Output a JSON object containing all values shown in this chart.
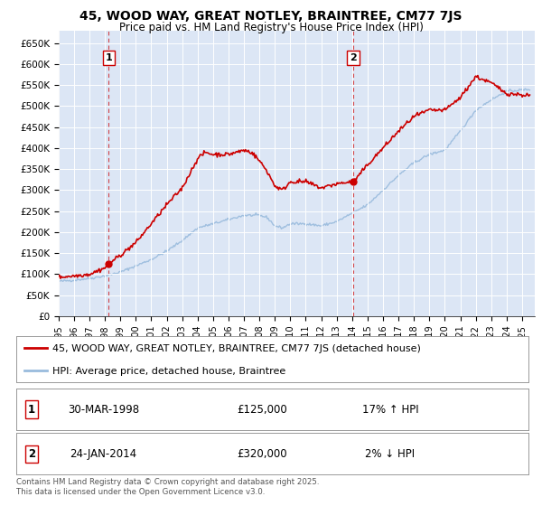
{
  "title": "45, WOOD WAY, GREAT NOTLEY, BRAINTREE, CM77 7JS",
  "subtitle": "Price paid vs. HM Land Registry's House Price Index (HPI)",
  "ylim": [
    0,
    680000
  ],
  "background_color": "#dce6f5",
  "sale1_date": 1998.25,
  "sale1_price": 125000,
  "sale1_label": "1",
  "sale2_date": 2014.07,
  "sale2_price": 320000,
  "sale2_label": "2",
  "legend_line1": "45, WOOD WAY, GREAT NOTLEY, BRAINTREE, CM77 7JS (detached house)",
  "legend_line2": "HPI: Average price, detached house, Braintree",
  "table_row1_num": "1",
  "table_row1_date": "30-MAR-1998",
  "table_row1_price": "£125,000",
  "table_row1_hpi": "17% ↑ HPI",
  "table_row2_num": "2",
  "table_row2_date": "24-JAN-2014",
  "table_row2_price": "£320,000",
  "table_row2_hpi": "2% ↓ HPI",
  "footer": "Contains HM Land Registry data © Crown copyright and database right 2025.\nThis data is licensed under the Open Government Licence v3.0.",
  "line_color_red": "#cc0000",
  "line_color_blue": "#99bbdd",
  "vline_color": "#cc0000",
  "yticks": [
    0,
    50000,
    100000,
    150000,
    200000,
    250000,
    300000,
    350000,
    400000,
    450000,
    500000,
    550000,
    600000,
    650000
  ],
  "ylabels": [
    "£0",
    "£50K",
    "£100K",
    "£150K",
    "£200K",
    "£250K",
    "£300K",
    "£350K",
    "£400K",
    "£450K",
    "£500K",
    "£550K",
    "£600K",
    "£650K"
  ]
}
